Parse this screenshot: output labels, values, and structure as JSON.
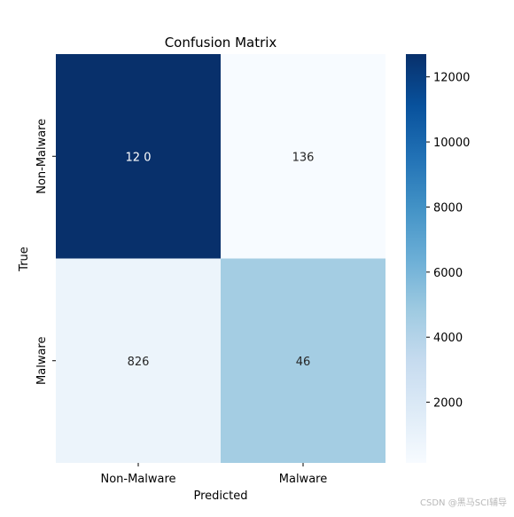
{
  "chart_data": {
    "type": "heatmap",
    "title": "Confusion Matrix",
    "xlabel": "Predicted",
    "ylabel": "True",
    "x_categories": [
      "Non-Malware",
      "Malware"
    ],
    "y_categories": [
      "Non-Malware",
      "Malware"
    ],
    "values": [
      [
        12700,
        136
      ],
      [
        826,
        4600
      ]
    ],
    "cell_labels": [
      [
        "12  0",
        "136"
      ],
      [
        "826",
        "46  "
      ]
    ],
    "colormap": "Blues",
    "colorbar": {
      "min": 136,
      "max": 12700,
      "ticks": [
        2000,
        4000,
        6000,
        8000,
        10000,
        12000
      ],
      "tick_labels": [
        "2000",
        "4000",
        "6000",
        "8000",
        "10000",
        "12000"
      ]
    },
    "colors": {
      "low": "#f7fbff",
      "high": "#08306b",
      "dark_text": "#262626",
      "light_text": "#ffffff"
    }
  },
  "watermark": "CSDN @黑马SCI辅导"
}
